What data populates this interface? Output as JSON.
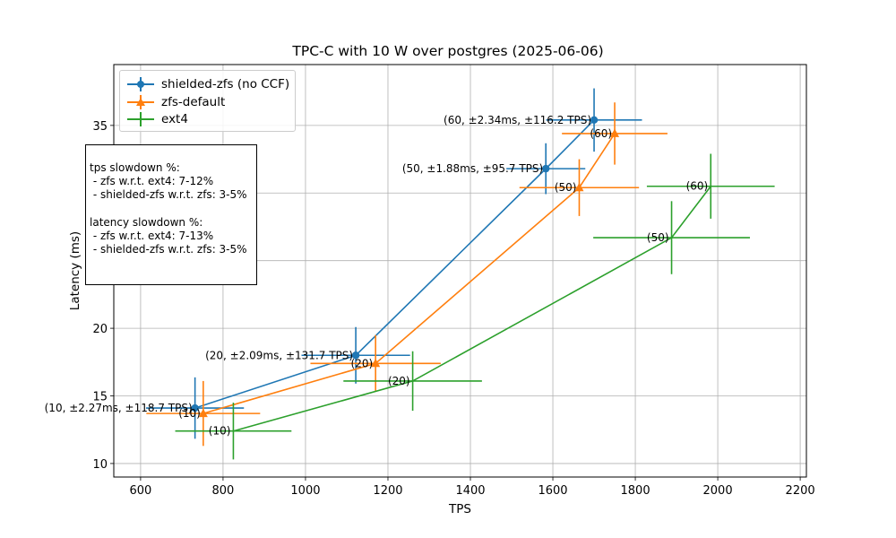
{
  "chart_data": {
    "type": "scatter",
    "title": "TPC-C with 10 W over postgres (2025-06-06)",
    "xlabel": "TPS",
    "ylabel": "Latency (ms)",
    "xlim": [
      535,
      2215
    ],
    "ylim": [
      9.0,
      39.5
    ],
    "xticks": [
      "600",
      "800",
      "1000",
      "1200",
      "1400",
      "1600",
      "1800",
      "2000",
      "2200"
    ],
    "yticks": [
      "10",
      "15",
      "20",
      "35"
    ],
    "grid": true,
    "legend_position": "upper-left",
    "series": [
      {
        "name": "shielded-zfs (no CCF)",
        "color": "#1f77b4",
        "marker": "circle",
        "points": [
          {
            "x": 732,
            "y": 14.1,
            "xerr": 118.7,
            "yerr": 2.27,
            "label": "(10, ±2.27ms, ±118.7 TPS)"
          },
          {
            "x": 1122,
            "y": 18.0,
            "xerr": 131.7,
            "yerr": 2.09,
            "label": "(20, ±2.09ms, ±131.7 TPS)"
          },
          {
            "x": 1583,
            "y": 31.8,
            "xerr": 95.7,
            "yerr": 1.88,
            "label": "(50, ±1.88ms, ±95.7 TPS)"
          },
          {
            "x": 1700,
            "y": 35.4,
            "xerr": 116.2,
            "yerr": 2.34,
            "label": "(60, ±2.34ms, ±116.2 TPS)"
          }
        ]
      },
      {
        "name": "zfs-default",
        "color": "#ff7f0e",
        "marker": "triangle",
        "points": [
          {
            "x": 752,
            "y": 13.7,
            "xerr": 138,
            "yerr": 2.4,
            "label": "(10)"
          },
          {
            "x": 1170,
            "y": 17.4,
            "xerr": 158,
            "yerr": 2.1,
            "label": "(20)"
          },
          {
            "x": 1664,
            "y": 30.4,
            "xerr": 145,
            "yerr": 2.1,
            "label": "(50)"
          },
          {
            "x": 1750,
            "y": 34.4,
            "xerr": 128,
            "yerr": 2.3,
            "label": "(60)"
          }
        ]
      },
      {
        "name": "ext4",
        "color": "#2ca02c",
        "marker": "plus",
        "points": [
          {
            "x": 825,
            "y": 12.4,
            "xerr": 141,
            "yerr": 2.1,
            "label": "(10)"
          },
          {
            "x": 1260,
            "y": 16.1,
            "xerr": 168,
            "yerr": 2.2,
            "label": "(20)"
          },
          {
            "x": 1888,
            "y": 26.7,
            "xerr": 190,
            "yerr": 2.7,
            "label": "(50)"
          },
          {
            "x": 1983,
            "y": 30.5,
            "xerr": 155,
            "yerr": 2.4,
            "label": "(60)"
          }
        ]
      }
    ],
    "text_box": [
      "",
      "tps slowdown %:",
      " - zfs w.r.t. ext4: 7-12%",
      " - shielded-zfs w.r.t. zfs: 3-5%",
      "",
      "latency slowdown %:",
      " - zfs w.r.t. ext4: 7-13%",
      " - shielded-zfs w.r.t. zfs: 3-5%"
    ]
  }
}
